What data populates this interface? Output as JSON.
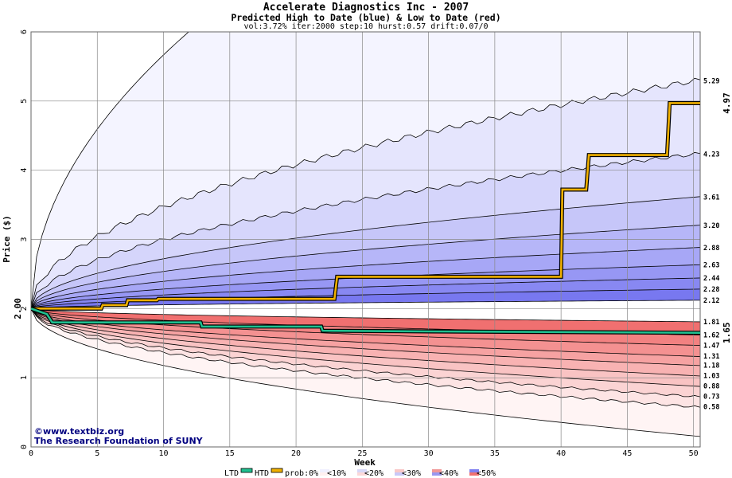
{
  "chart_data": {
    "type": "area",
    "title": "Accelerate Diagnostics Inc - 2007",
    "subtitle": "Predicted High to Date (blue) &  Low to Date (red)",
    "params": "vol:3.72% iter:2000 step:10 hurst:0.57 drift:0.07/0",
    "xlabel": "Week",
    "ylabel": "Price ($)",
    "xlim": [
      0,
      50.5
    ],
    "ylim": [
      0,
      6
    ],
    "x_ticks": [
      0,
      5,
      10,
      15,
      20,
      25,
      30,
      35,
      40,
      45,
      50
    ],
    "y_ticks": [
      0,
      1,
      2,
      3,
      4,
      5,
      6
    ],
    "grid": true,
    "start_price": "2.00",
    "upper_band_finals": [
      5.29,
      4.23,
      3.61,
      3.2,
      2.88,
      2.63,
      2.44,
      2.28,
      2.12
    ],
    "lower_band_finals": [
      1.81,
      1.62,
      1.47,
      1.31,
      1.18,
      1.03,
      0.88,
      0.73,
      0.58
    ],
    "upper_band_labels": [
      "5.29",
      "4.23",
      "3.61",
      "3.20",
      "2.88",
      "2.63",
      "2.44",
      "2.28",
      "2.12"
    ],
    "lower_band_labels": [
      "1.81",
      "1.62",
      "1.47",
      "1.31",
      "1.18",
      "1.03",
      "0.88",
      "0.73",
      "0.58"
    ],
    "series": [
      {
        "name": "HTD",
        "color": "#f0b000",
        "points": [
          [
            0,
            2.0
          ],
          [
            5.3,
            2.0
          ],
          [
            5.4,
            2.05
          ],
          [
            7.2,
            2.05
          ],
          [
            7.3,
            2.12
          ],
          [
            9.5,
            2.12
          ],
          [
            9.6,
            2.14
          ],
          [
            22.9,
            2.14
          ],
          [
            23.1,
            2.46
          ],
          [
            40.0,
            2.46
          ],
          [
            40.1,
            3.72
          ],
          [
            41.9,
            3.72
          ],
          [
            42.1,
            4.22
          ],
          [
            48.0,
            4.22
          ],
          [
            48.2,
            4.97
          ],
          [
            50.5,
            4.97
          ]
        ],
        "final_label": "4.97"
      },
      {
        "name": "LTD",
        "color": "#20c090",
        "points": [
          [
            0,
            2.0
          ],
          [
            1.2,
            1.92
          ],
          [
            1.6,
            1.8
          ],
          [
            12.8,
            1.8
          ],
          [
            12.9,
            1.74
          ],
          [
            21.9,
            1.74
          ],
          [
            22.0,
            1.68
          ],
          [
            30.0,
            1.67
          ],
          [
            50.5,
            1.65
          ]
        ],
        "final_label": "1.65"
      }
    ],
    "legend": {
      "placement": "bottom",
      "items": [
        "LTD",
        "HTD",
        "prob:0%",
        "<10%",
        "<20%",
        "<30%",
        "<40%",
        "<50%"
      ]
    },
    "credits": [
      "©www.textbiz.org",
      "The Research Foundation of SUNY"
    ],
    "colors": {
      "upper_fill_light": "#f4f4ff",
      "upper_fill_dark": "#7878f0",
      "lower_fill_light": "#fff4f4",
      "lower_fill_dark": "#f07070",
      "htd_line": "#f0b000",
      "ltd_line": "#20c090",
      "htd_label": "#8a6a00",
      "ltd_label": "#108060"
    }
  }
}
